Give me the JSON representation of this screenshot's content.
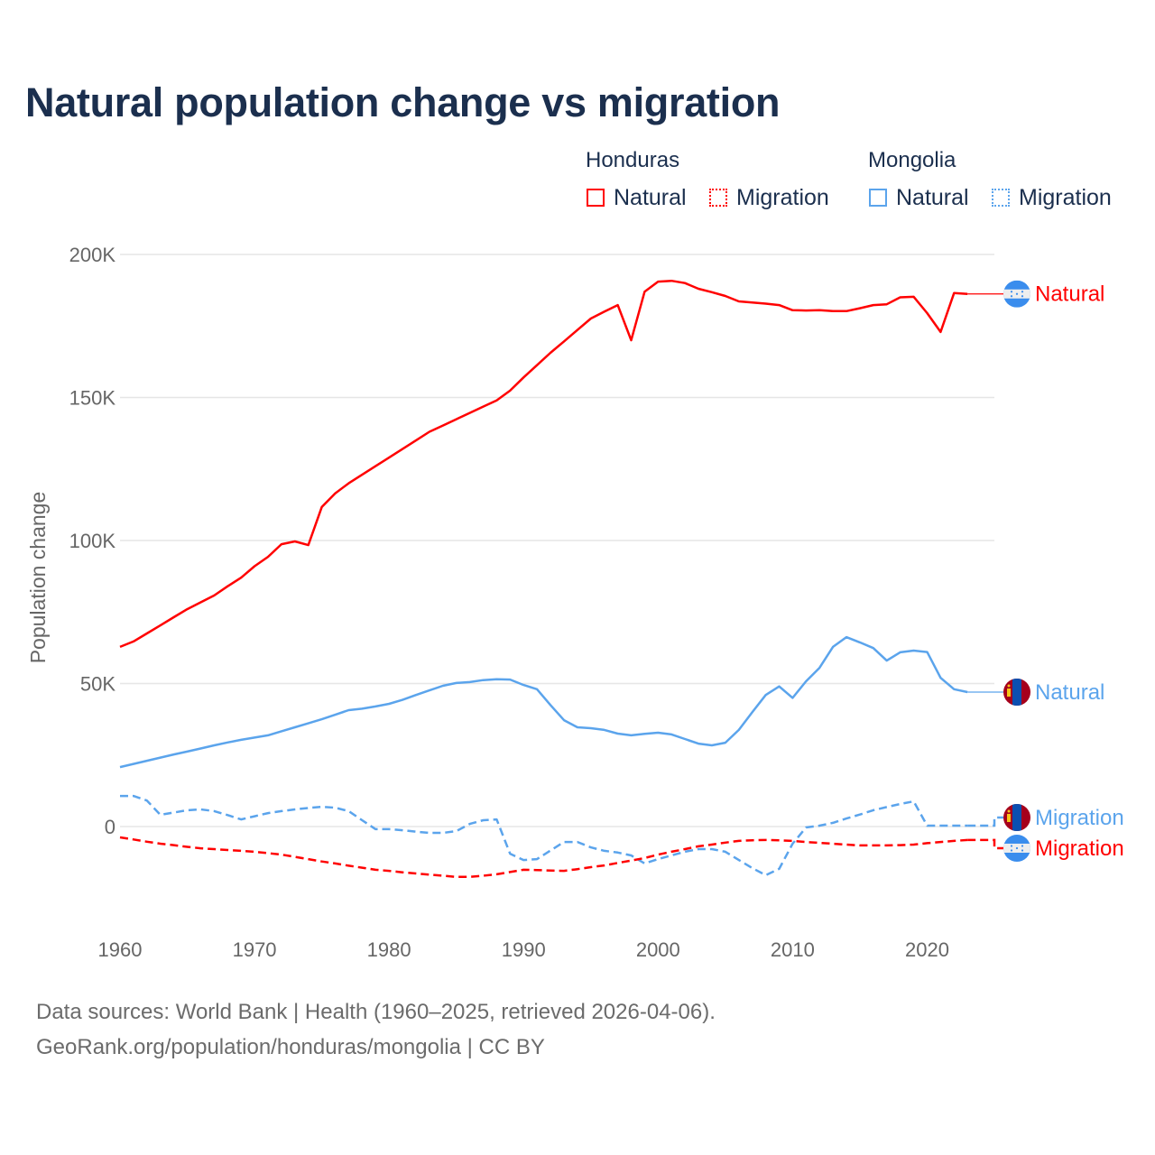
{
  "title": "Natural population change vs migration",
  "legend": {
    "groups": [
      {
        "name": "Honduras",
        "items": [
          {
            "label": "Natural",
            "style": "solid"
          },
          {
            "label": "Migration",
            "style": "dotted"
          }
        ],
        "color": "#ff0000"
      },
      {
        "name": "Mongolia",
        "items": [
          {
            "label": "Natural",
            "style": "solid"
          },
          {
            "label": "Migration",
            "style": "dotted"
          }
        ],
        "color": "#5ba4ec"
      }
    ]
  },
  "footer": {
    "line1": "Data sources: World Bank | Health (1960–2025, retrieved 2026-04-06).",
    "line2": "GeoRank.org/population/honduras/mongolia | CC BY"
  },
  "chart_data": {
    "type": "line",
    "title": "Natural population change vs migration",
    "xlabel": "",
    "ylabel": "Population change",
    "xlim": [
      1960,
      2025
    ],
    "ylim": [
      -25000,
      200000
    ],
    "grid": true,
    "x_ticks": [
      1960,
      1970,
      1980,
      1990,
      2000,
      2010,
      2020
    ],
    "y_ticks": [
      {
        "value": 0,
        "label": "0"
      },
      {
        "value": 50000,
        "label": "50K"
      },
      {
        "value": 100000,
        "label": "100K"
      },
      {
        "value": 150000,
        "label": "150K"
      },
      {
        "value": 200000,
        "label": "200K"
      }
    ],
    "x_start": 1960,
    "series": [
      {
        "name": "Honduras Natural",
        "country": "Honduras",
        "end_label": "Natural",
        "color": "#ff0000",
        "dash": false,
        "flag": "honduras-flag",
        "values": [
          62800,
          64700,
          67500,
          70300,
          73200,
          76000,
          78400,
          80800,
          84000,
          87000,
          91000,
          94300,
          98700,
          99700,
          98400,
          111700,
          116500,
          120000,
          123000,
          126000,
          129000,
          132000,
          135000,
          138000,
          140200,
          142400,
          144600,
          146800,
          149000,
          152400,
          157000,
          161300,
          165600,
          169600,
          173600,
          177600,
          180000,
          182300,
          170000,
          187000,
          190500,
          190800,
          190000,
          188000,
          186800,
          185500,
          183600,
          183200,
          182800,
          182300,
          180500,
          180400,
          180500,
          180200,
          180200,
          181200,
          182300,
          182600,
          185000,
          185200,
          179500,
          172900,
          186500,
          186200
        ]
      },
      {
        "name": "Mongolia Natural",
        "country": "Mongolia",
        "end_label": "Natural",
        "color": "#5ba4ec",
        "dash": false,
        "flag": "mongolia-flag",
        "values": [
          20800,
          21900,
          23000,
          24100,
          25200,
          26200,
          27300,
          28400,
          29400,
          30300,
          31100,
          31900,
          33300,
          34700,
          36100,
          37500,
          39100,
          40700,
          41200,
          42000,
          42900,
          44300,
          46000,
          47600,
          49200,
          50200,
          50500,
          51200,
          51500,
          51400,
          49500,
          48000,
          42500,
          37200,
          34700,
          34400,
          33800,
          32500,
          31900,
          32400,
          32800,
          32200,
          30600,
          29000,
          28400,
          29300,
          33800,
          40000,
          46000,
          49000,
          45000,
          50800,
          55500,
          62800,
          66200,
          64400,
          62400,
          58000,
          60900,
          61500,
          61000,
          52000,
          48000,
          47000
        ]
      },
      {
        "name": "Mongolia Migration",
        "country": "Mongolia",
        "end_label": "Migration",
        "color": "#5ba4ec",
        "dash": true,
        "flag": "mongolia-flag",
        "values": [
          10700,
          10700,
          9100,
          4100,
          4900,
          5700,
          6000,
          5400,
          4000,
          2500,
          3600,
          4700,
          5400,
          6000,
          6500,
          6900,
          6600,
          5400,
          2200,
          -900,
          -900,
          -1300,
          -1800,
          -2200,
          -2200,
          -1600,
          900,
          2200,
          2500,
          -9500,
          -11700,
          -11400,
          -8400,
          -5400,
          -5400,
          -7300,
          -8500,
          -9100,
          -10100,
          -12900,
          -11400,
          -10100,
          -8800,
          -7900,
          -7900,
          -8800,
          -11700,
          -14500,
          -17000,
          -14800,
          -6000,
          -300,
          300,
          1300,
          2800,
          4200,
          5700,
          6800,
          7900,
          8800,
          300,
          300,
          300,
          300
        ]
      },
      {
        "name": "Honduras Migration",
        "country": "Honduras",
        "end_label": "Migration",
        "color": "#ff0000",
        "dash": true,
        "flag": "honduras-flag",
        "values": [
          -3800,
          -4500,
          -5300,
          -6000,
          -6500,
          -7100,
          -7600,
          -7900,
          -8200,
          -8500,
          -8800,
          -9300,
          -9800,
          -10600,
          -11400,
          -12200,
          -12900,
          -13700,
          -14400,
          -15100,
          -15500,
          -16000,
          -16400,
          -16800,
          -17200,
          -17600,
          -17600,
          -17200,
          -16700,
          -15900,
          -15100,
          -15200,
          -15400,
          -15500,
          -14900,
          -14200,
          -13600,
          -12700,
          -11900,
          -11000,
          -9800,
          -8800,
          -7900,
          -6900,
          -6300,
          -5600,
          -5000,
          -4800,
          -4700,
          -4800,
          -5000,
          -5400,
          -5700,
          -6000,
          -6300,
          -6600,
          -6600,
          -6600,
          -6500,
          -6300,
          -5800,
          -5400,
          -5000,
          -4700
        ]
      }
    ]
  }
}
